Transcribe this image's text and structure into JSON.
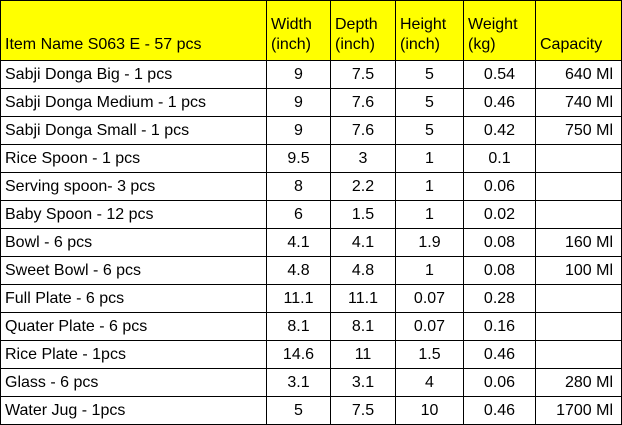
{
  "table": {
    "header": [
      [
        "Item Name S063 E - 57 pcs"
      ],
      [
        "Width",
        "(inch)"
      ],
      [
        "Depth",
        "(inch)"
      ],
      [
        "Height",
        "(inch)"
      ],
      [
        "Weight",
        "(kg)"
      ],
      [
        "Capacity"
      ]
    ],
    "rows": [
      [
        "Sabji Donga Big - 1 pcs",
        "9",
        "7.5",
        "5",
        "0.54",
        "640 Ml"
      ],
      [
        "Sabji Donga Medium - 1 pcs",
        "9",
        "7.6",
        "5",
        "0.46",
        "740 Ml"
      ],
      [
        "Sabji Donga Small - 1 pcs",
        "9",
        "7.6",
        "5",
        "0.42",
        "750 Ml"
      ],
      [
        "Rice Spoon - 1 pcs",
        "9.5",
        "3",
        "1",
        "0.1",
        null
      ],
      [
        "Serving spoon- 3 pcs",
        "8",
        "2.2",
        "1",
        "0.06",
        null
      ],
      [
        "Baby Spoon - 12 pcs",
        "6",
        "1.5",
        "1",
        "0.02",
        null
      ],
      [
        "Bowl - 6 pcs",
        "4.1",
        "4.1",
        "1.9",
        "0.08",
        "160 Ml"
      ],
      [
        "Sweet Bowl - 6 pcs",
        "4.8",
        "4.8",
        "1",
        "0.08",
        "100 Ml"
      ],
      [
        "Full Plate - 6 pcs",
        "11.1",
        "11.1",
        "0.07",
        "0.28",
        null
      ],
      [
        "Quater Plate - 6 pcs",
        "8.1",
        "8.1",
        "0.07",
        "0.16",
        null
      ],
      [
        "Rice Plate - 1pcs",
        "14.6",
        "11",
        "1.5",
        "0.46",
        null
      ],
      [
        "Glass - 6 pcs",
        "3.1",
        "3.1",
        "4",
        "0.06",
        "280 Ml"
      ],
      [
        "Water Jug - 1pcs",
        "5",
        "7.5",
        "10",
        "0.46",
        "1700 Ml"
      ]
    ]
  }
}
